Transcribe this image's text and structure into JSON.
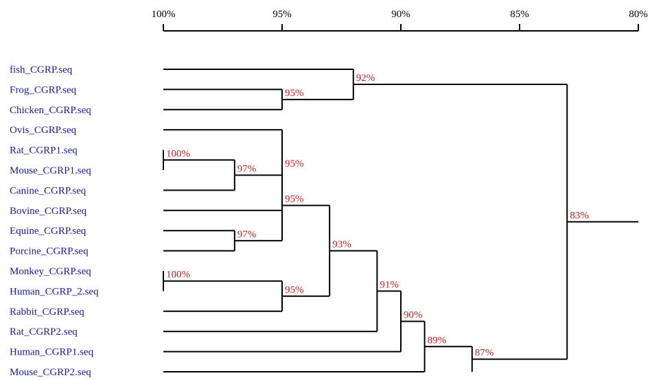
{
  "colors": {
    "leaf_label": "#1a1aaa",
    "node_label": "#cc1f1f",
    "line": "#000000"
  },
  "scale": {
    "ticks": [
      "100%",
      "95%",
      "90%",
      "85%",
      "80%"
    ]
  },
  "leaves": [
    "fish_CGRP.seq",
    "Frog_CGRP.seq",
    "Chicken_CGRP.seq",
    "Ovis_CGRP.seq",
    "Rat_CGRP1.seq",
    "Mouse_CGRP1.seq",
    "Canine_CGRP.seq",
    "Bovine_CGRP.seq",
    "Equine_CGRP.seq",
    "Porcine_CGRP.seq",
    "Monkey_CGRP.seq",
    "Human_CGRP_2.seq",
    "Rabbit_CGRP.seq",
    "Rat_CGRP2.seq",
    "Human_CGRP1.seq",
    "Mouse_CGRP2.seq"
  ],
  "nodes": [
    {
      "id": "n_rat_mouse",
      "label": "100%",
      "value": 100,
      "children": [
        "L4",
        "L5"
      ]
    },
    {
      "id": "n_rm_canine",
      "label": "97%",
      "value": 97,
      "children": [
        "n_rat_mouse",
        "L6"
      ]
    },
    {
      "id": "n_ovis_group",
      "label": "95%",
      "value": 95,
      "children": [
        "L3",
        "n_rm_canine",
        "L7"
      ]
    },
    {
      "id": "n_equine_porcine",
      "label": "97%",
      "value": 97,
      "children": [
        "L8",
        "L9"
      ]
    },
    {
      "id": "n_mammal_a",
      "label": "95%",
      "value": 95,
      "children": [
        "n_ovis_group",
        "n_equine_porcine"
      ]
    },
    {
      "id": "n_monkey_human",
      "label": "100%",
      "value": 100,
      "children": [
        "L10",
        "L11"
      ]
    },
    {
      "id": "n_mh_rabbit",
      "label": "95%",
      "value": 95,
      "children": [
        "n_monkey_human",
        "L12"
      ]
    },
    {
      "id": "n_93",
      "label": "93%",
      "value": 93,
      "children": [
        "n_mammal_a",
        "n_mh_rabbit"
      ]
    },
    {
      "id": "n_91",
      "label": "91%",
      "value": 91,
      "children": [
        "n_93",
        "L13"
      ]
    },
    {
      "id": "n_90",
      "label": "90%",
      "value": 90,
      "children": [
        "n_91",
        "L14"
      ]
    },
    {
      "id": "n_89",
      "label": "89%",
      "value": 89,
      "children": [
        "n_90",
        "L15"
      ]
    },
    {
      "id": "n_frog_chicken",
      "label": "95%",
      "value": 95,
      "children": [
        "L1",
        "L2"
      ]
    },
    {
      "id": "n_fish",
      "label": "92%",
      "value": 92,
      "children": [
        "L0",
        "n_frog_chicken"
      ]
    },
    {
      "id": "n_87",
      "label": "87%",
      "value": 87,
      "children": [
        "n_89",
        "L15b"
      ]
    },
    {
      "id": "n_root",
      "label": "83%",
      "value": 83,
      "children": [
        "n_fish",
        "n_87"
      ]
    }
  ]
}
